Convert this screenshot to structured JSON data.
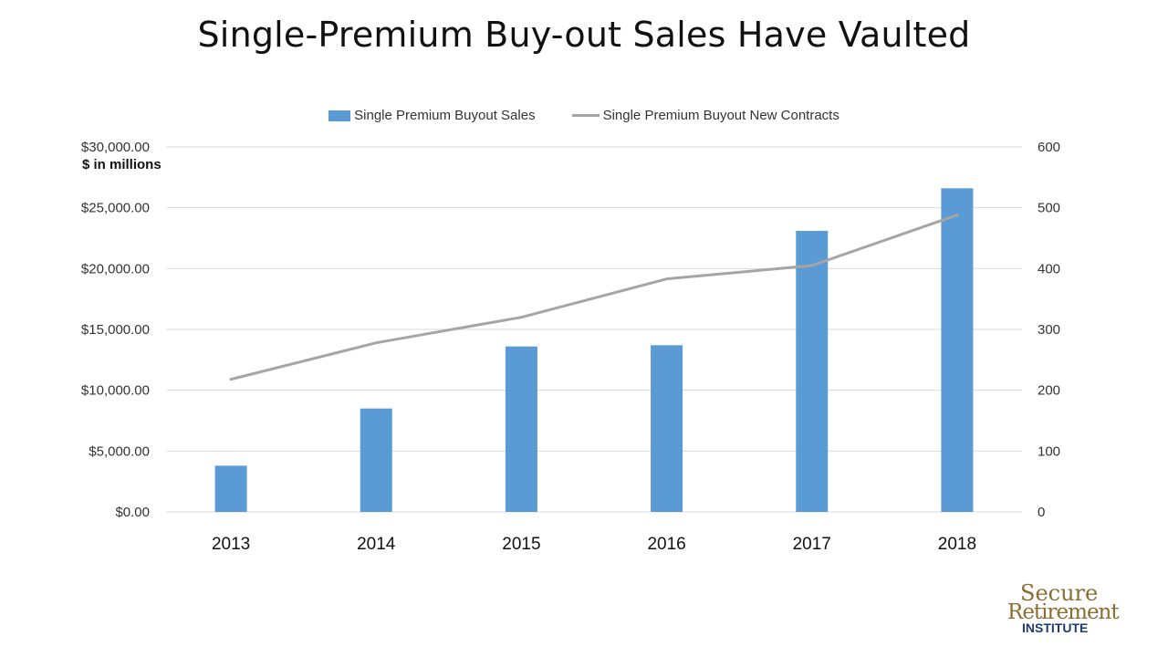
{
  "title": "Single-Premium Buy-out Sales Have Vaulted",
  "unit_note": "$ in millions",
  "legend": {
    "bar_label": "Single Premium Buyout Sales",
    "line_label": "Single Premium Buyout New Contracts"
  },
  "colors": {
    "bar": "#5b9bd5",
    "line": "#a5a5a5",
    "grid": "#d9d9d9",
    "logo_gold": "#8b6d2f",
    "logo_navy": "#1f3b73"
  },
  "logo": {
    "line1": "Secure",
    "line2": "Retirement",
    "line3": "INSTITUTE"
  },
  "chart_data": {
    "type": "bar",
    "categories": [
      "2013",
      "2014",
      "2015",
      "2016",
      "2017",
      "2018"
    ],
    "series": [
      {
        "name": "Single Premium Buyout Sales",
        "type": "bar",
        "axis": "left",
        "values": [
          3800,
          8500,
          13600,
          13700,
          23100,
          26600
        ]
      },
      {
        "name": "Single Premium Buyout New Contracts",
        "type": "line",
        "axis": "right",
        "values": [
          218,
          278,
          320,
          383,
          405,
          488
        ]
      }
    ],
    "y_left": {
      "ylim": [
        0,
        30000
      ],
      "tick_labels": [
        "$0.00",
        "$5,000.00",
        "$10,000.00",
        "$15,000.00",
        "$20,000.00",
        "$25,000.00",
        "$30,000.00"
      ]
    },
    "y_right": {
      "ylim": [
        0,
        600
      ],
      "tick_labels": [
        "0",
        "100",
        "200",
        "300",
        "400",
        "500",
        "600"
      ]
    },
    "grid": true,
    "legend_position": "top"
  }
}
